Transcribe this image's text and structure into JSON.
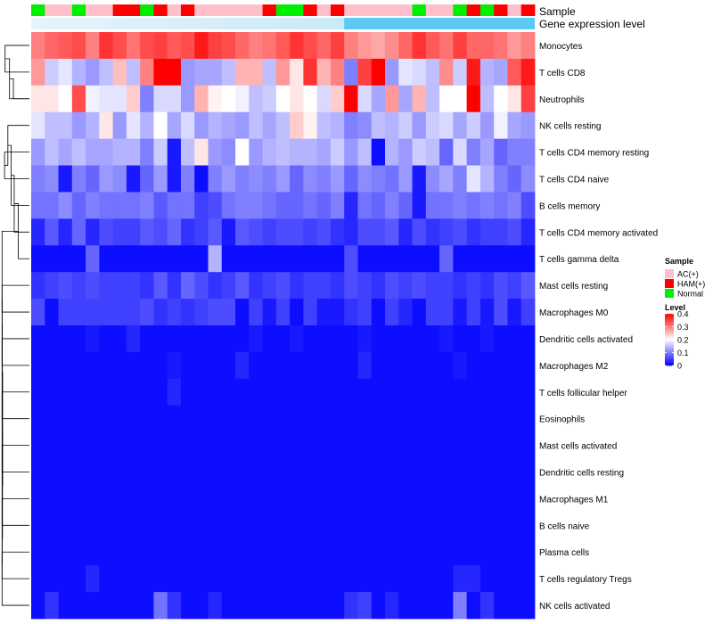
{
  "chart_data": {
    "type": "heatmap",
    "title": "",
    "color_scale": {
      "low": "#0000ff",
      "mid": "#ffffff",
      "high": "#ff0000",
      "domain": [
        0,
        0.2,
        0.4
      ]
    },
    "annotation_tracks": [
      {
        "label": "Sample",
        "track": "sample"
      },
      {
        "label": "Gene expression level",
        "track": "gene_expression_level",
        "color": "#5bc8f5"
      }
    ],
    "sample_colors": {
      "AC(+)": "#ffc0cb",
      "HAM(+)": "#ff0000",
      "Normal": "#00ee00"
    },
    "column_samples": [
      "Normal",
      "AC(+)",
      "AC(+)",
      "Normal",
      "AC(+)",
      "AC(+)",
      "HAM(+)",
      "HAM(+)",
      "Normal",
      "HAM(+)",
      "AC(+)",
      "HAM(+)",
      "AC(+)",
      "AC(+)",
      "AC(+)",
      "AC(+)",
      "AC(+)",
      "HAM(+)",
      "Normal",
      "Normal",
      "HAM(+)",
      "AC(+)",
      "HAM(+)",
      "AC(+)",
      "AC(+)",
      "AC(+)",
      "AC(+)",
      "AC(+)",
      "Normal",
      "AC(+)",
      "AC(+)",
      "Normal",
      "HAM(+)",
      "Normal",
      "HAM(+)",
      "AC(+)",
      "HAM(+)"
    ],
    "rows": [
      "Monocytes",
      "T cells CD8",
      "Neutrophils",
      "NK cells resting",
      "T cells CD4 memory resting",
      "T cells CD4 naive",
      "B cells memory",
      "T cells CD4 memory activated",
      "T cells gamma delta",
      "Mast cells resting",
      "Macrophages M0",
      "Dendritic cells activated",
      "Macrophages M2",
      "T cells follicular helper",
      "Eosinophils",
      "Mast cells activated",
      "Dendritic cells resting",
      "Macrophages M1",
      "B cells naive",
      "Plasma cells",
      "T cells regulatory  Tregs",
      "NK cells activated"
    ],
    "values": [
      [
        0.3,
        0.32,
        0.33,
        0.34,
        0.3,
        0.36,
        0.34,
        0.31,
        0.34,
        0.35,
        0.33,
        0.34,
        0.38,
        0.35,
        0.34,
        0.32,
        0.3,
        0.31,
        0.33,
        0.36,
        0.34,
        0.32,
        0.35,
        0.3,
        0.28,
        0.27,
        0.29,
        0.32,
        0.36,
        0.33,
        0.31,
        0.35,
        0.32,
        0.32,
        0.31,
        0.28,
        0.3
      ],
      [
        0.28,
        0.16,
        0.18,
        0.14,
        0.12,
        0.15,
        0.25,
        0.15,
        0.3,
        0.4,
        0.4,
        0.12,
        0.13,
        0.13,
        0.15,
        0.26,
        0.26,
        0.15,
        0.28,
        0.22,
        0.36,
        0.26,
        0.3,
        0.1,
        0.35,
        0.4,
        0.12,
        0.18,
        0.17,
        0.15,
        0.29,
        0.16,
        0.38,
        0.14,
        0.13,
        0.33,
        0.38
      ],
      [
        0.22,
        0.22,
        0.2,
        0.34,
        0.19,
        0.18,
        0.18,
        0.24,
        0.1,
        0.17,
        0.17,
        0.12,
        0.26,
        0.21,
        0.2,
        0.19,
        0.15,
        0.16,
        0.2,
        0.22,
        0.2,
        0.17,
        0.24,
        0.4,
        0.17,
        0.13,
        0.28,
        0.13,
        0.26,
        0.15,
        0.2,
        0.2,
        0.4,
        0.15,
        0.2,
        0.22,
        0.35
      ],
      [
        0.18,
        0.15,
        0.15,
        0.12,
        0.14,
        0.22,
        0.12,
        0.18,
        0.14,
        0.2,
        0.13,
        0.17,
        0.12,
        0.14,
        0.13,
        0.12,
        0.15,
        0.13,
        0.15,
        0.24,
        0.21,
        0.15,
        0.14,
        0.1,
        0.11,
        0.15,
        0.14,
        0.16,
        0.12,
        0.16,
        0.17,
        0.13,
        0.16,
        0.12,
        0.19,
        0.13,
        0.12
      ],
      [
        0.12,
        0.15,
        0.13,
        0.15,
        0.13,
        0.13,
        0.14,
        0.14,
        0.1,
        0.16,
        0.02,
        0.15,
        0.22,
        0.12,
        0.11,
        0.2,
        0.12,
        0.14,
        0.15,
        0.14,
        0.14,
        0.13,
        0.16,
        0.12,
        0.15,
        0.01,
        0.14,
        0.12,
        0.16,
        0.15,
        0.08,
        0.17,
        0.1,
        0.13,
        0.08,
        0.1,
        0.1
      ],
      [
        0.1,
        0.11,
        0.02,
        0.1,
        0.08,
        0.12,
        0.11,
        0.02,
        0.08,
        0.12,
        0.02,
        0.1,
        0.01,
        0.1,
        0.12,
        0.1,
        0.11,
        0.1,
        0.12,
        0.08,
        0.11,
        0.1,
        0.12,
        0.08,
        0.11,
        0.1,
        0.09,
        0.12,
        0.02,
        0.11,
        0.13,
        0.1,
        0.18,
        0.14,
        0.1,
        0.08,
        0.11
      ],
      [
        0.09,
        0.09,
        0.11,
        0.08,
        0.1,
        0.09,
        0.09,
        0.09,
        0.1,
        0.07,
        0.09,
        0.09,
        0.05,
        0.06,
        0.09,
        0.1,
        0.1,
        0.09,
        0.08,
        0.08,
        0.09,
        0.08,
        0.1,
        0.03,
        0.09,
        0.08,
        0.1,
        0.08,
        0.02,
        0.09,
        0.09,
        0.1,
        0.09,
        0.1,
        0.09,
        0.1,
        0.06
      ],
      [
        0.03,
        0.07,
        0.03,
        0.08,
        0.03,
        0.06,
        0.05,
        0.05,
        0.07,
        0.06,
        0.08,
        0.04,
        0.05,
        0.07,
        0.02,
        0.07,
        0.06,
        0.05,
        0.06,
        0.06,
        0.05,
        0.06,
        0.04,
        0.03,
        0.06,
        0.06,
        0.07,
        0.03,
        0.06,
        0.04,
        0.05,
        0.06,
        0.04,
        0.05,
        0.05,
        0.06,
        0.03
      ],
      [
        0.01,
        0.01,
        0.01,
        0.01,
        0.08,
        0.01,
        0.01,
        0.01,
        0.01,
        0.01,
        0.01,
        0.01,
        0.01,
        0.14,
        0.01,
        0.01,
        0.01,
        0.01,
        0.01,
        0.01,
        0.01,
        0.01,
        0.01,
        0.06,
        0.01,
        0.01,
        0.01,
        0.01,
        0.01,
        0.01,
        0.08,
        0.01,
        0.01,
        0.01,
        0.01,
        0.01,
        0.01
      ],
      [
        0.04,
        0.05,
        0.06,
        0.05,
        0.06,
        0.05,
        0.05,
        0.05,
        0.04,
        0.07,
        0.04,
        0.08,
        0.06,
        0.04,
        0.05,
        0.07,
        0.04,
        0.05,
        0.06,
        0.04,
        0.05,
        0.05,
        0.04,
        0.06,
        0.05,
        0.04,
        0.06,
        0.05,
        0.06,
        0.05,
        0.05,
        0.04,
        0.05,
        0.04,
        0.06,
        0.05,
        0.07
      ],
      [
        0.06,
        0.01,
        0.05,
        0.05,
        0.05,
        0.05,
        0.05,
        0.05,
        0.06,
        0.04,
        0.05,
        0.04,
        0.05,
        0.06,
        0.06,
        0.01,
        0.05,
        0.02,
        0.05,
        0.01,
        0.05,
        0.02,
        0.02,
        0.04,
        0.05,
        0.01,
        0.05,
        0.03,
        0.01,
        0.05,
        0.05,
        0.02,
        0.05,
        0.02,
        0.06,
        0.02,
        0.05
      ],
      [
        0.01,
        0.01,
        0.01,
        0.01,
        0.02,
        0.01,
        0.01,
        0.03,
        0.01,
        0.01,
        0.01,
        0.01,
        0.01,
        0.01,
        0.01,
        0.01,
        0.02,
        0.01,
        0.01,
        0.02,
        0.01,
        0.01,
        0.01,
        0.01,
        0.02,
        0.01,
        0.01,
        0.01,
        0.01,
        0.01,
        0.02,
        0.01,
        0.01,
        0.02,
        0.01,
        0.01,
        0.01
      ],
      [
        0.01,
        0.01,
        0.01,
        0.01,
        0.01,
        0.01,
        0.01,
        0.01,
        0.01,
        0.01,
        0.02,
        0.01,
        0.01,
        0.01,
        0.01,
        0.03,
        0.01,
        0.01,
        0.01,
        0.01,
        0.01,
        0.01,
        0.01,
        0.01,
        0.03,
        0.01,
        0.01,
        0.01,
        0.01,
        0.01,
        0.01,
        0.02,
        0.01,
        0.01,
        0.01,
        0.01,
        0.01
      ],
      [
        0.01,
        0.01,
        0.01,
        0.01,
        0.01,
        0.01,
        0.01,
        0.01,
        0.01,
        0.01,
        0.03,
        0.01,
        0.01,
        0.01,
        0.01,
        0.01,
        0.01,
        0.01,
        0.01,
        0.01,
        0.01,
        0.01,
        0.01,
        0.01,
        0.01,
        0.01,
        0.01,
        0.01,
        0.01,
        0.01,
        0.01,
        0.01,
        0.01,
        0.01,
        0.01,
        0.01,
        0.01
      ],
      [
        0.01,
        0.01,
        0.01,
        0.01,
        0.01,
        0.01,
        0.01,
        0.01,
        0.01,
        0.01,
        0.01,
        0.01,
        0.01,
        0.01,
        0.01,
        0.01,
        0.01,
        0.01,
        0.01,
        0.01,
        0.01,
        0.01,
        0.01,
        0.01,
        0.01,
        0.01,
        0.01,
        0.01,
        0.01,
        0.01,
        0.01,
        0.01,
        0.01,
        0.01,
        0.01,
        0.01,
        0.01
      ],
      [
        0.01,
        0.01,
        0.01,
        0.01,
        0.01,
        0.01,
        0.01,
        0.01,
        0.01,
        0.01,
        0.01,
        0.01,
        0.01,
        0.01,
        0.01,
        0.01,
        0.01,
        0.01,
        0.01,
        0.01,
        0.01,
        0.01,
        0.01,
        0.01,
        0.01,
        0.01,
        0.01,
        0.01,
        0.01,
        0.01,
        0.01,
        0.01,
        0.01,
        0.01,
        0.01,
        0.01,
        0.01
      ],
      [
        0.01,
        0.01,
        0.01,
        0.01,
        0.01,
        0.01,
        0.01,
        0.01,
        0.01,
        0.01,
        0.01,
        0.01,
        0.01,
        0.01,
        0.01,
        0.01,
        0.01,
        0.01,
        0.01,
        0.01,
        0.01,
        0.01,
        0.01,
        0.01,
        0.01,
        0.01,
        0.01,
        0.01,
        0.01,
        0.01,
        0.01,
        0.01,
        0.01,
        0.01,
        0.01,
        0.01,
        0.01
      ],
      [
        0.01,
        0.01,
        0.01,
        0.01,
        0.01,
        0.01,
        0.01,
        0.01,
        0.01,
        0.01,
        0.01,
        0.01,
        0.01,
        0.01,
        0.01,
        0.01,
        0.01,
        0.01,
        0.01,
        0.01,
        0.01,
        0.01,
        0.01,
        0.01,
        0.01,
        0.01,
        0.01,
        0.01,
        0.01,
        0.01,
        0.01,
        0.01,
        0.01,
        0.01,
        0.01,
        0.01,
        0.01
      ],
      [
        0.01,
        0.01,
        0.01,
        0.01,
        0.01,
        0.01,
        0.01,
        0.01,
        0.01,
        0.01,
        0.01,
        0.01,
        0.01,
        0.01,
        0.01,
        0.01,
        0.01,
        0.01,
        0.01,
        0.01,
        0.01,
        0.01,
        0.01,
        0.01,
        0.01,
        0.01,
        0.01,
        0.01,
        0.01,
        0.01,
        0.01,
        0.01,
        0.01,
        0.01,
        0.01,
        0.01,
        0.01
      ],
      [
        0.01,
        0.01,
        0.01,
        0.01,
        0.01,
        0.01,
        0.01,
        0.01,
        0.01,
        0.01,
        0.01,
        0.01,
        0.01,
        0.01,
        0.01,
        0.01,
        0.01,
        0.01,
        0.01,
        0.01,
        0.01,
        0.01,
        0.01,
        0.01,
        0.01,
        0.01,
        0.01,
        0.01,
        0.01,
        0.01,
        0.01,
        0.01,
        0.01,
        0.01,
        0.01,
        0.01,
        0.01
      ],
      [
        0.01,
        0.01,
        0.01,
        0.01,
        0.03,
        0.01,
        0.01,
        0.01,
        0.01,
        0.01,
        0.01,
        0.01,
        0.01,
        0.01,
        0.01,
        0.01,
        0.01,
        0.01,
        0.01,
        0.01,
        0.01,
        0.01,
        0.01,
        0.01,
        0.01,
        0.01,
        0.01,
        0.01,
        0.01,
        0.01,
        0.01,
        0.03,
        0.03,
        0.01,
        0.01,
        0.01,
        0.01
      ],
      [
        0.01,
        0.04,
        0.01,
        0.01,
        0.01,
        0.01,
        0.01,
        0.01,
        0.01,
        0.09,
        0.04,
        0.01,
        0.01,
        0.03,
        0.01,
        0.01,
        0.01,
        0.01,
        0.01,
        0.01,
        0.01,
        0.01,
        0.01,
        0.04,
        0.05,
        0.01,
        0.03,
        0.01,
        0.01,
        0.01,
        0.01,
        0.1,
        0.01,
        0.04,
        0.01,
        0.01,
        0.01
      ]
    ],
    "row_dendrogram_links": [
      [
        0,
        1
      ],
      [
        22,
        2
      ],
      [
        23,
        2
      ],
      [
        4,
        5
      ],
      [
        25,
        3
      ],
      [
        26,
        6
      ],
      [
        27,
        7
      ],
      [
        28,
        8
      ],
      [
        9,
        10
      ],
      [
        11,
        12
      ],
      [
        13,
        14
      ],
      [
        15,
        16
      ],
      [
        17,
        18
      ],
      [
        19,
        20
      ],
      [
        21,
        29
      ],
      [
        30,
        31
      ],
      [
        32,
        33
      ],
      [
        34,
        35
      ],
      [
        36,
        37
      ],
      [
        38,
        39
      ],
      [
        40,
        41
      ]
    ],
    "row_dendrogram_heights": [
      0.88,
      0.72,
      0.58,
      0.9,
      0.78,
      0.66,
      0.55,
      0.4,
      0.99,
      0.99,
      0.99,
      0.99,
      0.99,
      0.99,
      0.99,
      0.985,
      0.985,
      0.985,
      0.98,
      0.975,
      0.97
    ],
    "legend": {
      "sample_title": "Sample",
      "sample_items": [
        "AC(+)",
        "HAM(+)",
        "Normal"
      ],
      "level_title": "Level",
      "level_ticks": [
        "0.4",
        "0.3",
        "0.2",
        "0.1",
        "0"
      ],
      "level_tick_values": [
        0.4,
        0.3,
        0.2,
        0.1,
        0
      ]
    }
  }
}
